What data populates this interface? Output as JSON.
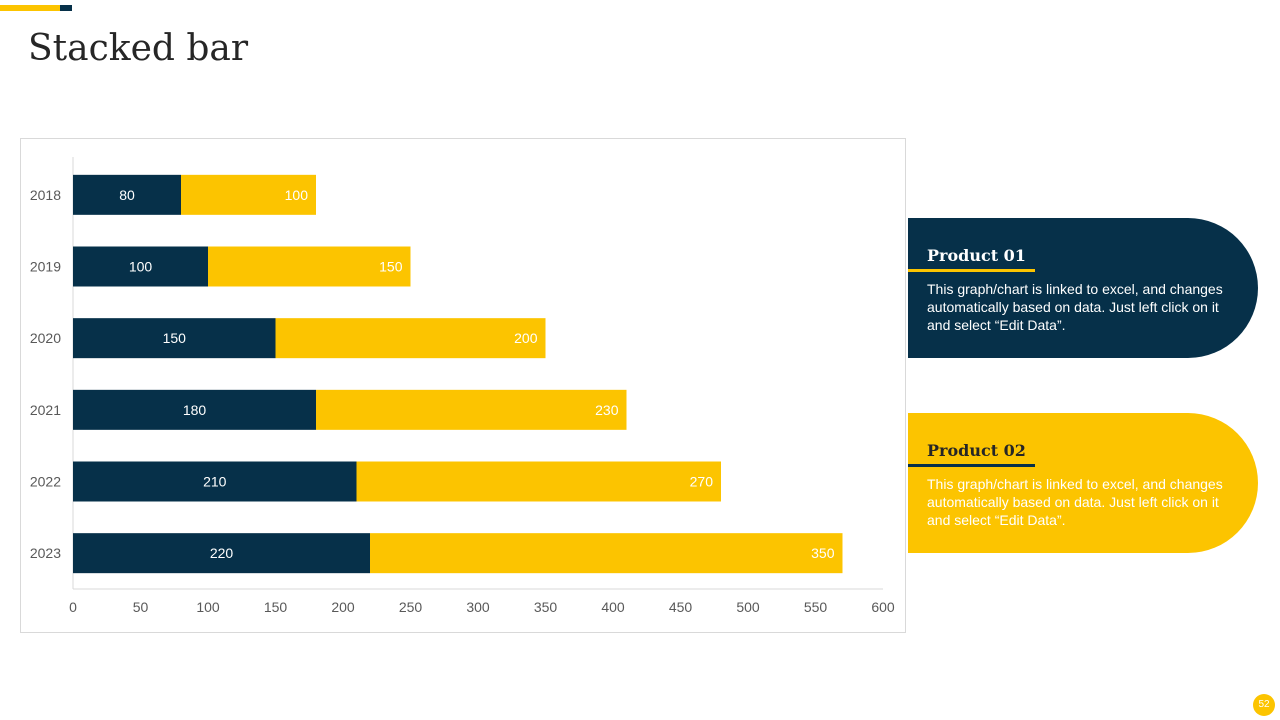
{
  "slide": {
    "title": "Stacked bar",
    "page_number": "52"
  },
  "colors": {
    "navy": "#063049",
    "yellow": "#FCC400",
    "axis_text": "#595959"
  },
  "chart_data": {
    "type": "bar",
    "orientation": "horizontal",
    "stacked": true,
    "title": "",
    "xlabel": "",
    "ylabel": "",
    "categories": [
      "2018",
      "2019",
      "2020",
      "2021",
      "2022",
      "2023"
    ],
    "series": [
      {
        "name": "Product 01",
        "color": "#063049",
        "values": [
          80,
          100,
          150,
          180,
          210,
          220
        ]
      },
      {
        "name": "Product 02",
        "color": "#FCC400",
        "values": [
          100,
          150,
          200,
          230,
          270,
          350
        ]
      }
    ],
    "xlim": [
      0,
      600
    ],
    "xticks": [
      0,
      50,
      100,
      150,
      200,
      250,
      300,
      350,
      400,
      450,
      500,
      550,
      600
    ],
    "grid": false,
    "legend": "none"
  },
  "products": [
    {
      "title": "Product 01",
      "text": "This graph/chart is linked to excel, and changes automatically based on data. Just left click on it and select “Edit Data”."
    },
    {
      "title": "Product 02",
      "text": "This graph/chart is linked to excel, and changes automatically based on data. Just left click on it and select “Edit Data”."
    }
  ]
}
